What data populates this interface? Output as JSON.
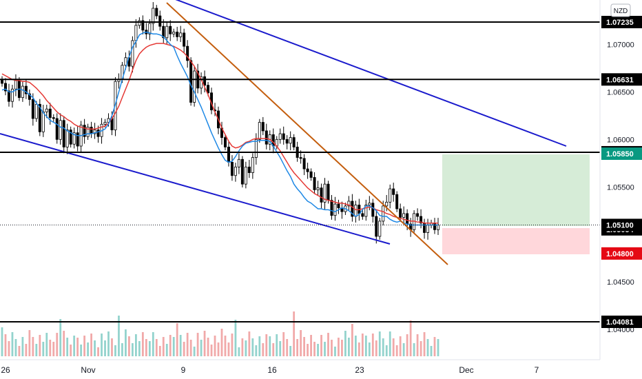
{
  "chart_data": {
    "type": "candlestick",
    "currency_label": "NZD",
    "y_axis": {
      "range": [
        1.0392,
        1.0738
      ],
      "tick_values": [
        1.04,
        1.045,
        1.055,
        1.06,
        1.065,
        1.07
      ],
      "tick_labels": [
        "1.04000",
        "1.04500",
        "1.05500",
        "1.06000",
        "1.06500",
        "1.07000"
      ]
    },
    "x_axis": {
      "tick_labels": [
        "26",
        "Nov",
        "9",
        "16",
        "23",
        "Dec",
        "7"
      ]
    },
    "horizontal_levels": [
      {
        "value": 1.07235,
        "label": "1.07235"
      },
      {
        "value": 1.06631,
        "label": "1.06631"
      },
      {
        "value": 1.05865,
        "label": "1.05865"
      },
      {
        "value": 1.05084,
        "label": "1.05084"
      },
      {
        "value": 1.05054,
        "label": "1.05054"
      },
      {
        "value": 1.04081,
        "label": "1.04081"
      }
    ],
    "current_price": {
      "value": 1.051,
      "label": "1.05100"
    },
    "position": {
      "entry": 1.051,
      "take_profit": {
        "value": 1.0585,
        "label": "1.05850"
      },
      "stop_loss": {
        "value": 1.048,
        "label": "1.04800"
      }
    },
    "series_close": [
      1.0659,
      1.0651,
      1.064,
      1.0653,
      1.0662,
      1.0644,
      1.0656,
      1.0648,
      1.0642,
      1.0622,
      1.0637,
      1.0608,
      1.0629,
      1.0632,
      1.0623,
      1.0622,
      1.06,
      1.062,
      1.0592,
      1.061,
      1.0595,
      1.0607,
      1.0593,
      1.0615,
      1.0603,
      1.0613,
      1.0606,
      1.061,
      1.0603,
      1.0616,
      1.0618,
      1.0622,
      1.061,
      1.0661,
      1.0663,
      1.0678,
      1.0686,
      1.0677,
      1.0704,
      1.072,
      1.0725,
      1.0715,
      1.0711,
      1.0722,
      1.0738,
      1.073,
      1.0719,
      1.0707,
      1.0719,
      1.0711,
      1.0713,
      1.0708,
      1.0712,
      1.0698,
      1.0683,
      1.0639,
      1.0672,
      1.0654,
      1.0666,
      1.0657,
      1.0649,
      1.0631,
      1.063,
      1.0612,
      1.0602,
      1.0592,
      1.0576,
      1.0562,
      1.0571,
      1.0579,
      1.0553,
      1.0571,
      1.0565,
      1.0581,
      1.06,
      1.0618,
      1.0609,
      1.0595,
      1.0605,
      1.0593,
      1.06,
      1.0606,
      1.06,
      1.0596,
      1.0602,
      1.0592,
      1.0581,
      1.058,
      1.0569,
      1.0566,
      1.056,
      1.0547,
      1.0549,
      1.0534,
      1.0553,
      1.0536,
      1.052,
      1.0532,
      1.0528,
      1.0524,
      1.053,
      1.0535,
      1.0519,
      1.0531,
      1.0522,
      1.0519,
      1.0531,
      1.0533,
      1.0519,
      1.0498,
      1.0514,
      1.053,
      1.0534,
      1.0548,
      1.0542,
      1.0527,
      1.0518,
      1.0522,
      1.0511,
      1.0505,
      1.0522,
      1.0519,
      1.0512,
      1.0502,
      1.051,
      1.0512,
      1.0505,
      1.051
    ],
    "series_ema_fast": [
      1.0652,
      1.0653,
      1.065,
      1.065,
      1.0652,
      1.0653,
      1.0652,
      1.065,
      1.0647,
      1.0644,
      1.0638,
      1.0634,
      1.0628,
      1.0624,
      1.062,
      1.0618,
      1.0616,
      1.0613,
      1.0612,
      1.0609,
      1.0607,
      1.0605,
      1.0604,
      1.0604,
      1.0605,
      1.0606,
      1.0606,
      1.0607,
      1.0608,
      1.0609,
      1.0611,
      1.0616,
      1.0625,
      1.0637,
      1.065,
      1.0663,
      1.0675,
      1.0687,
      1.0697,
      1.0703,
      1.071,
      1.0712,
      1.0713,
      1.0712,
      1.0711,
      1.0711,
      1.071,
      1.0708,
      1.0704,
      1.07,
      1.0697,
      1.0688,
      1.068,
      1.0673,
      1.0666,
      1.0657,
      1.065,
      1.0642,
      1.0634,
      1.0625,
      1.0616,
      1.0607,
      1.0599,
      1.0591,
      1.0584,
      1.0578,
      1.0576,
      1.0577,
      1.0582,
      1.0588,
      1.0593,
      1.0596,
      1.0597,
      1.0598,
      1.0598,
      1.0599,
      1.0599,
      1.0599,
      1.0598,
      1.0593,
      1.0587,
      1.0581,
      1.0574,
      1.0567,
      1.0561,
      1.0553,
      1.0548,
      1.0544,
      1.0539,
      1.0535,
      1.0533,
      1.053,
      1.0527,
      1.0527,
      1.0526,
      1.0526,
      1.0525,
      1.0524,
      1.0526,
      1.0528,
      1.0527,
      1.0525,
      1.0522,
      1.0519,
      1.0521,
      1.0526,
      1.053,
      1.053,
      1.0528,
      1.0525,
      1.052,
      1.0519,
      1.0519,
      1.0516,
      1.0514,
      1.0513,
      1.0514,
      1.0512,
      1.0511,
      1.051,
      1.051,
      1.051,
      1.051,
      1.051,
      1.051,
      1.051,
      1.051,
      1.051
    ],
    "series_ema_slow": [
      1.0669,
      1.0667,
      1.0665,
      1.0663,
      1.0662,
      1.0662,
      1.0661,
      1.0661,
      1.066,
      1.0657,
      1.0654,
      1.065,
      1.0646,
      1.0641,
      1.0637,
      1.0633,
      1.0629,
      1.0626,
      1.0624,
      1.0621,
      1.0619,
      1.0616,
      1.0614,
      1.0613,
      1.0612,
      1.0611,
      1.0611,
      1.0611,
      1.0612,
      1.0613,
      1.0614,
      1.0617,
      1.0622,
      1.0628,
      1.0635,
      1.0644,
      1.0653,
      1.0662,
      1.0673,
      1.0683,
      1.069,
      1.0694,
      1.0697,
      1.0699,
      1.07,
      1.0701,
      1.0701,
      1.0701,
      1.07,
      1.0699,
      1.0698,
      1.0696,
      1.0694,
      1.0691,
      1.0687,
      1.0682,
      1.0677,
      1.067,
      1.0663,
      1.0655,
      1.0647,
      1.0638,
      1.0629,
      1.0621,
      1.0612,
      1.0605,
      1.0598,
      1.0593,
      1.0591,
      1.0592,
      1.0594,
      1.0597,
      1.0598,
      1.06,
      1.0601,
      1.0601,
      1.0601,
      1.0601,
      1.06,
      1.0597,
      1.0593,
      1.0588,
      1.0582,
      1.0576,
      1.057,
      1.0565,
      1.0561,
      1.0557,
      1.0553,
      1.0549,
      1.0546,
      1.0543,
      1.0541,
      1.0539,
      1.0537,
      1.0536,
      1.0535,
      1.0534,
      1.0533,
      1.0533,
      1.0532,
      1.0531,
      1.0529,
      1.0526,
      1.0526,
      1.0527,
      1.0528,
      1.0529,
      1.0528,
      1.0526,
      1.0525,
      1.0524,
      1.0522,
      1.0521,
      1.0519,
      1.0518,
      1.0517,
      1.0516,
      1.0515,
      1.0514,
      1.0514,
      1.0513,
      1.0513,
      1.0512,
      1.0512,
      1.0512,
      1.0512,
      1.0512
    ]
  }
}
